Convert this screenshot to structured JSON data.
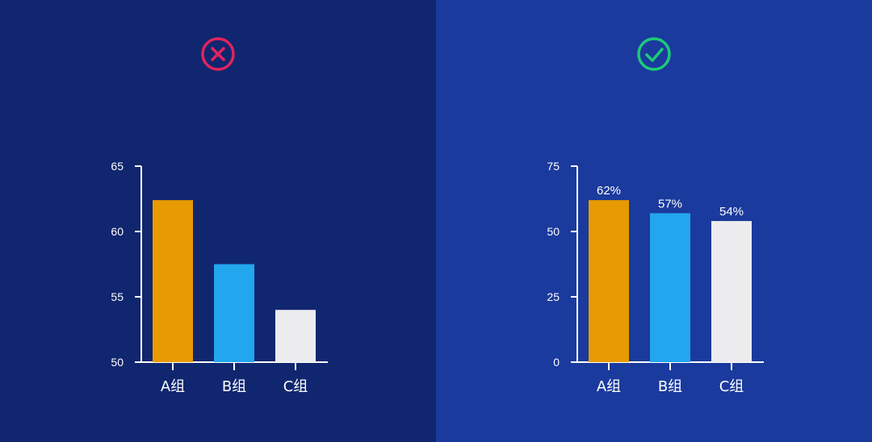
{
  "panels": [
    {
      "verdict": "wrong",
      "verdict_icon": "cross-circle-icon",
      "verdict_color": "#e0245e",
      "background": "#10266f"
    },
    {
      "verdict": "correct",
      "verdict_icon": "check-circle-icon",
      "verdict_color": "#1ec97a",
      "background": "#1a3a9d"
    }
  ],
  "colors": {
    "a": "#e89a02",
    "b": "#22a6ee",
    "c": "#ececee",
    "axis": "#ffffff"
  },
  "chart_data": [
    {
      "type": "bar",
      "title": "",
      "xlabel": "",
      "ylabel": "",
      "categories": [
        "A组",
        "B组",
        "C组"
      ],
      "values": [
        62.4,
        57.5,
        54
      ],
      "ylim": [
        50,
        65
      ],
      "yticks": [
        50,
        55,
        60,
        65
      ],
      "data_labels": [],
      "grid": false,
      "legend": "none"
    },
    {
      "type": "bar",
      "title": "",
      "xlabel": "",
      "ylabel": "",
      "categories": [
        "A组",
        "B组",
        "C组"
      ],
      "values": [
        62,
        57,
        54
      ],
      "ylim": [
        0,
        75
      ],
      "yticks": [
        0,
        25,
        50,
        75
      ],
      "data_labels": [
        "62%",
        "57%",
        "54%"
      ],
      "grid": false,
      "legend": "none"
    }
  ]
}
